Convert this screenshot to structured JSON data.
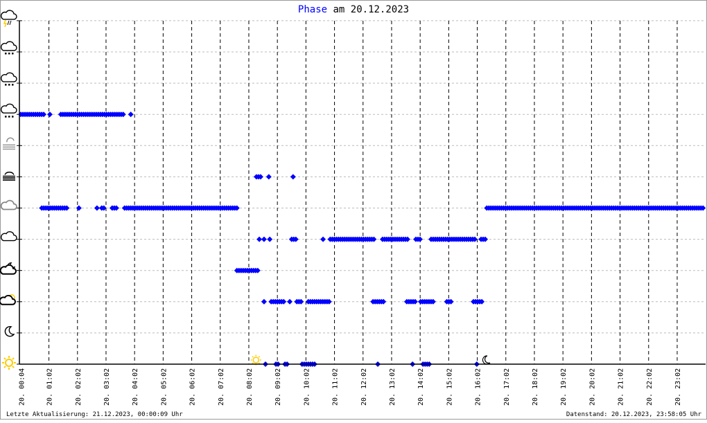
{
  "chart_data": {
    "type": "scatter",
    "title": {
      "highlight": "Phase",
      "rest": "am 20.12.2023"
    },
    "title_color": "#0000ff",
    "marker_color": "#0000ff",
    "marker": "diamond",
    "x_unit": "time of day (HH:MM)",
    "xlim": [
      "00:00",
      "24:00"
    ],
    "x_ticks": [
      "20. 00:04",
      "20. 01:02",
      "20. 02:02",
      "20. 03:02",
      "20. 04:02",
      "20. 05:02",
      "20. 06:02",
      "20. 07:02",
      "20. 08:02",
      "20. 09:02",
      "20. 10:02",
      "20. 11:02",
      "20. 12:02",
      "20. 13:02",
      "20. 14:02",
      "20. 15:02",
      "20. 16:02",
      "20. 17:02",
      "20. 18:02",
      "20. 19:02",
      "20. 20:02",
      "20. 21:02",
      "20. 22:02",
      "20. 23:02"
    ],
    "y_categories": [
      "clear-day-icon",
      "clear-night-icon",
      "partly-cloudy-day-icon",
      "partly-cloudy-night-icon",
      "cloudy-icon",
      "overcast-icon",
      "fog-icon",
      "fog-partial-icon",
      "rain-icon",
      "sleet-icon",
      "snow-icon",
      "thunderstorm-icon"
    ],
    "grid": {
      "x": "dashed-black",
      "y": "dotted-grey"
    },
    "annotations": [
      {
        "icon": "sunrise-sun-icon",
        "time": "08:17"
      },
      {
        "icon": "sunset-moon-icon",
        "time": "16:20"
      }
    ],
    "series": [
      {
        "level": 8,
        "runs": [
          [
            "00:03",
            "00:55"
          ],
          [
            "01:04",
            "01:04"
          ],
          [
            "01:27",
            "03:41"
          ],
          [
            "03:54",
            "03:54"
          ]
        ]
      },
      {
        "level": 5,
        "runs": [
          [
            "00:47",
            "01:42"
          ],
          [
            "02:05",
            "02:05"
          ],
          [
            "02:43",
            "02:43"
          ],
          [
            "02:53",
            "03:01"
          ],
          [
            "03:15",
            "03:27"
          ],
          [
            "03:41",
            "07:37"
          ],
          [
            "16:22",
            "24:00"
          ]
        ]
      },
      {
        "level": 6,
        "runs": [
          [
            "08:18",
            "08:30"
          ],
          [
            "08:44",
            "08:44"
          ],
          [
            "09:35",
            "09:35"
          ]
        ]
      },
      {
        "level": 4,
        "runs": [
          [
            "08:24",
            "08:24"
          ],
          [
            "08:34",
            "08:34"
          ],
          [
            "08:46",
            "08:49"
          ],
          [
            "09:32",
            "09:41"
          ],
          [
            "10:38",
            "10:38"
          ],
          [
            "10:53",
            "12:26"
          ],
          [
            "12:43",
            "13:38"
          ],
          [
            "13:53",
            "14:03"
          ],
          [
            "14:25",
            "15:58"
          ],
          [
            "16:10",
            "16:22"
          ]
        ]
      },
      {
        "level": 3,
        "runs": [
          [
            "07:37",
            "08:21"
          ]
        ]
      },
      {
        "level": 2,
        "runs": [
          [
            "08:34",
            "08:38"
          ],
          [
            "08:49",
            "09:19"
          ],
          [
            "09:28",
            "09:28"
          ],
          [
            "09:43",
            "09:54"
          ],
          [
            "10:07",
            "10:54"
          ],
          [
            "12:23",
            "12:49"
          ],
          [
            "13:34",
            "13:53"
          ],
          [
            "14:03",
            "14:32"
          ],
          [
            "14:58",
            "15:09"
          ],
          [
            "15:54",
            "16:13"
          ]
        ]
      },
      {
        "level": 0,
        "runs": [
          [
            "08:37",
            "08:37"
          ],
          [
            "08:59",
            "09:05"
          ],
          [
            "09:18",
            "09:24"
          ],
          [
            "09:54",
            "10:23"
          ],
          [
            "12:33",
            "12:33"
          ],
          [
            "13:46",
            "13:46"
          ],
          [
            "14:08",
            "14:25"
          ],
          [
            "16:01",
            "16:04"
          ]
        ]
      }
    ]
  },
  "footer": {
    "left": "Letzte Aktualisierung: 21.12.2023, 00:00:09 Uhr",
    "right": "Datenstand: 20.12.2023, 23:58:05 Uhr"
  }
}
